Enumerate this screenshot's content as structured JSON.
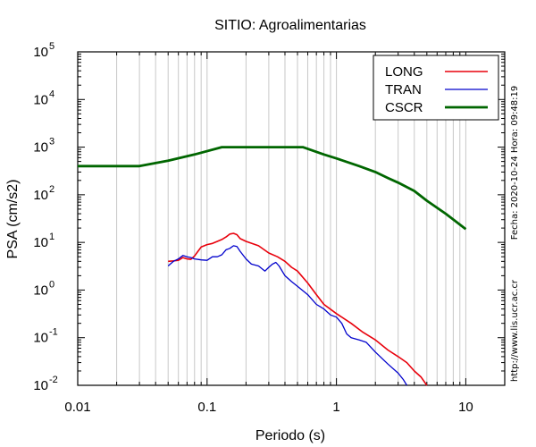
{
  "chart_data": {
    "type": "line",
    "title": "SITIO: Agroalimentarias",
    "xlabel": "Periodo (s)",
    "ylabel": "PSA (cm/s2)",
    "xscale": "log",
    "yscale": "log",
    "xlim": [
      0.01,
      20
    ],
    "ylim": [
      0.01,
      100000
    ],
    "grid": "x-minor-vertical",
    "legend": "top-right",
    "x_ticks": [
      {
        "v": 0.01,
        "label": "0.01"
      },
      {
        "v": 0.1,
        "label": "0.1"
      },
      {
        "v": 1,
        "label": "1"
      },
      {
        "v": 10,
        "label": "10"
      }
    ],
    "y_ticks": [
      {
        "v": 100000,
        "base": "10",
        "exp": "5"
      },
      {
        "v": 10000,
        "base": "10",
        "exp": "4"
      },
      {
        "v": 1000,
        "base": "10",
        "exp": "3"
      },
      {
        "v": 100,
        "base": "10",
        "exp": "2"
      },
      {
        "v": 10,
        "base": "10",
        "exp": "1"
      },
      {
        "v": 1,
        "base": "10",
        "exp": "0"
      },
      {
        "v": 0.1,
        "base": "10",
        "exp": "-1"
      },
      {
        "v": 0.01,
        "base": "10",
        "exp": "-2"
      }
    ],
    "series": [
      {
        "name": "LONG",
        "color": "#e8000b",
        "width": 1.6,
        "points": [
          [
            0.05,
            4.0
          ],
          [
            0.055,
            4.1
          ],
          [
            0.06,
            4.2
          ],
          [
            0.065,
            4.8
          ],
          [
            0.07,
            4.5
          ],
          [
            0.075,
            4.4
          ],
          [
            0.08,
            5.2
          ],
          [
            0.085,
            6.5
          ],
          [
            0.09,
            8.0
          ],
          [
            0.1,
            9.0
          ],
          [
            0.11,
            9.5
          ],
          [
            0.12,
            10.5
          ],
          [
            0.13,
            11.5
          ],
          [
            0.14,
            13.0
          ],
          [
            0.15,
            15.0
          ],
          [
            0.16,
            15.5
          ],
          [
            0.17,
            14.5
          ],
          [
            0.18,
            12.0
          ],
          [
            0.2,
            10.5
          ],
          [
            0.25,
            8.5
          ],
          [
            0.3,
            6.0
          ],
          [
            0.35,
            5.0
          ],
          [
            0.4,
            4.0
          ],
          [
            0.45,
            3.0
          ],
          [
            0.5,
            2.5
          ],
          [
            0.6,
            1.4
          ],
          [
            0.7,
            0.8
          ],
          [
            0.8,
            0.5
          ],
          [
            1.0,
            0.32
          ],
          [
            1.3,
            0.2
          ],
          [
            1.6,
            0.13
          ],
          [
            2.0,
            0.09
          ],
          [
            2.5,
            0.055
          ],
          [
            3.0,
            0.04
          ],
          [
            3.5,
            0.03
          ],
          [
            4.0,
            0.02
          ],
          [
            4.5,
            0.015
          ],
          [
            5.0,
            0.01
          ]
        ]
      },
      {
        "name": "TRAN",
        "color": "#0000cc",
        "width": 1.3,
        "points": [
          [
            0.05,
            3.2
          ],
          [
            0.055,
            4.0
          ],
          [
            0.06,
            4.5
          ],
          [
            0.065,
            5.3
          ],
          [
            0.07,
            5.0
          ],
          [
            0.075,
            4.8
          ],
          [
            0.08,
            4.5
          ],
          [
            0.09,
            4.3
          ],
          [
            0.1,
            4.2
          ],
          [
            0.11,
            5.0
          ],
          [
            0.12,
            5.0
          ],
          [
            0.13,
            5.5
          ],
          [
            0.14,
            7.0
          ],
          [
            0.15,
            7.5
          ],
          [
            0.16,
            8.5
          ],
          [
            0.17,
            8.2
          ],
          [
            0.18,
            6.5
          ],
          [
            0.2,
            4.5
          ],
          [
            0.22,
            3.5
          ],
          [
            0.25,
            3.2
          ],
          [
            0.28,
            2.5
          ],
          [
            0.3,
            3.0
          ],
          [
            0.32,
            3.5
          ],
          [
            0.34,
            3.8
          ],
          [
            0.36,
            3.2
          ],
          [
            0.4,
            2.0
          ],
          [
            0.45,
            1.5
          ],
          [
            0.5,
            1.2
          ],
          [
            0.6,
            0.8
          ],
          [
            0.7,
            0.5
          ],
          [
            0.8,
            0.4
          ],
          [
            0.9,
            0.3
          ],
          [
            1.0,
            0.27
          ],
          [
            1.1,
            0.2
          ],
          [
            1.2,
            0.12
          ],
          [
            1.3,
            0.1
          ],
          [
            1.5,
            0.09
          ],
          [
            1.7,
            0.08
          ],
          [
            2.0,
            0.05
          ],
          [
            2.5,
            0.028
          ],
          [
            3.0,
            0.018
          ],
          [
            3.3,
            0.013
          ],
          [
            3.5,
            0.01
          ]
        ]
      },
      {
        "name": "CSCR",
        "color": "#006600",
        "width": 2.8,
        "points": [
          [
            0.01,
            400
          ],
          [
            0.03,
            400
          ],
          [
            0.05,
            520
          ],
          [
            0.08,
            700
          ],
          [
            0.13,
            1000
          ],
          [
            0.55,
            1000
          ],
          [
            0.8,
            700
          ],
          [
            1.0,
            580
          ],
          [
            1.5,
            400
          ],
          [
            2.0,
            300
          ],
          [
            2.5,
            225
          ],
          [
            3.0,
            180
          ],
          [
            4.0,
            120
          ],
          [
            5.0,
            75
          ],
          [
            7.0,
            40
          ],
          [
            10.0,
            19
          ]
        ]
      }
    ]
  },
  "side_notes": {
    "date": "Fecha: 2020-10-24  Hora: 09:48:19",
    "url": "http://www.lis.ucr.ac.cr"
  }
}
